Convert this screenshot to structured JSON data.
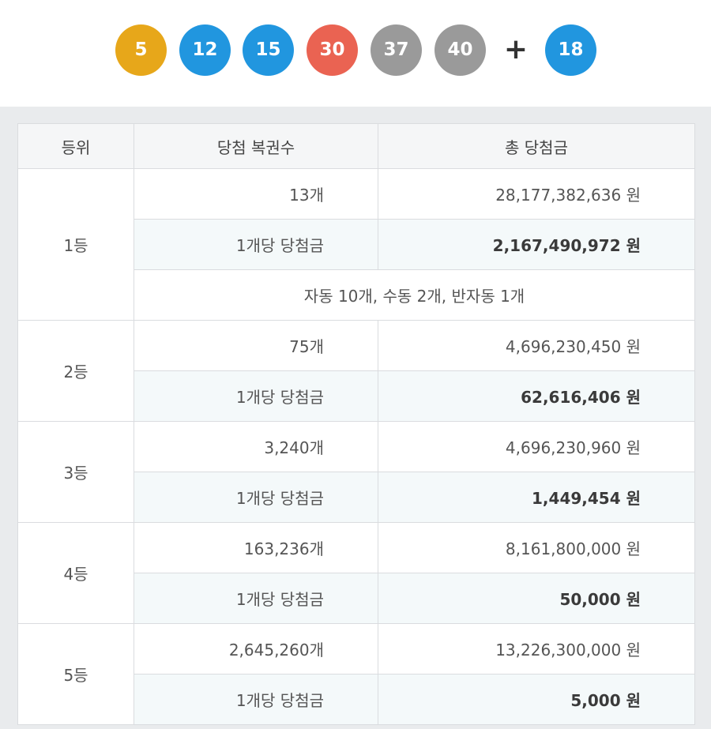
{
  "balls": [
    {
      "number": "5",
      "color": "#e7a71a"
    },
    {
      "number": "12",
      "color": "#2196df"
    },
    {
      "number": "15",
      "color": "#2196df"
    },
    {
      "number": "30",
      "color": "#ea6352"
    },
    {
      "number": "37",
      "color": "#9a9a9a"
    },
    {
      "number": "40",
      "color": "#9a9a9a"
    }
  ],
  "plus": "+",
  "bonus": {
    "number": "18",
    "color": "#2196df"
  },
  "table": {
    "headers": [
      "등위",
      "당첨 복권수",
      "총 당첨금"
    ],
    "rows": [
      {
        "rank": "1등",
        "count": "13개",
        "total": "28,177,382,636 원",
        "per_label": "1개당 당첨금",
        "per_amount": "2,167,490,972 원",
        "detail": "자동 10개, 수동 2개, 반자동 1개"
      },
      {
        "rank": "2등",
        "count": "75개",
        "total": "4,696,230,450 원",
        "per_label": "1개당 당첨금",
        "per_amount": "62,616,406 원"
      },
      {
        "rank": "3등",
        "count": "3,240개",
        "total": "4,696,230,960 원",
        "per_label": "1개당 당첨금",
        "per_amount": "1,449,454 원"
      },
      {
        "rank": "4등",
        "count": "163,236개",
        "total": "8,161,800,000 원",
        "per_label": "1개당 당첨금",
        "per_amount": "50,000 원"
      },
      {
        "rank": "5등",
        "count": "2,645,260개",
        "total": "13,226,300,000 원",
        "per_label": "1개당 당첨금",
        "per_amount": "5,000 원"
      }
    ]
  }
}
